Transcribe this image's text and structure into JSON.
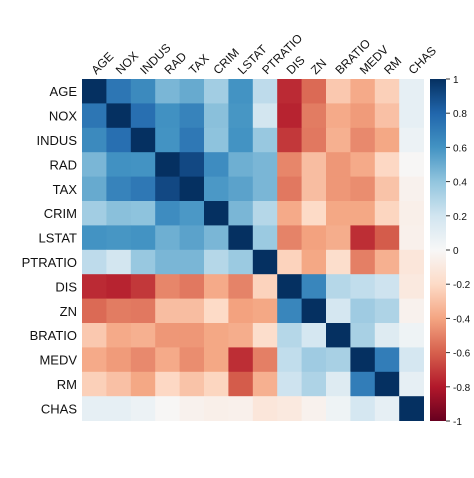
{
  "chart_data": {
    "type": "heatmap",
    "title": "",
    "labels": [
      "AGE",
      "NOX",
      "INDUS",
      "RAD",
      "TAX",
      "CRIM",
      "LSTAT",
      "PTRATIO",
      "DIS",
      "ZN",
      "BRATIO",
      "MEDV",
      "RM",
      "CHAS"
    ],
    "matrix": [
      [
        1.0,
        0.73,
        0.64,
        0.46,
        0.51,
        0.35,
        0.6,
        0.26,
        -0.75,
        -0.57,
        -0.27,
        -0.38,
        -0.24,
        0.09
      ],
      [
        0.73,
        1.0,
        0.76,
        0.61,
        0.67,
        0.42,
        0.59,
        0.19,
        -0.77,
        -0.52,
        -0.38,
        -0.43,
        -0.3,
        0.09
      ],
      [
        0.64,
        0.76,
        1.0,
        0.6,
        0.72,
        0.41,
        0.6,
        0.38,
        -0.71,
        -0.53,
        -0.36,
        -0.48,
        -0.39,
        0.06
      ],
      [
        0.46,
        0.61,
        0.6,
        1.0,
        0.91,
        0.63,
        0.49,
        0.46,
        -0.49,
        -0.31,
        -0.44,
        -0.38,
        -0.21,
        -0.01
      ],
      [
        0.51,
        0.67,
        0.72,
        0.91,
        1.0,
        0.58,
        0.54,
        0.46,
        -0.53,
        -0.31,
        -0.44,
        -0.47,
        -0.29,
        -0.04
      ],
      [
        0.35,
        0.42,
        0.41,
        0.63,
        0.58,
        1.0,
        0.46,
        0.29,
        -0.38,
        -0.2,
        -0.39,
        -0.39,
        -0.22,
        -0.06
      ],
      [
        0.6,
        0.59,
        0.6,
        0.49,
        0.54,
        0.46,
        1.0,
        0.37,
        -0.5,
        -0.41,
        -0.37,
        -0.74,
        -0.61,
        -0.05
      ],
      [
        0.26,
        0.19,
        0.38,
        0.46,
        0.46,
        0.29,
        0.37,
        1.0,
        -0.23,
        -0.39,
        -0.18,
        -0.51,
        -0.36,
        -0.12
      ],
      [
        -0.75,
        -0.77,
        -0.71,
        -0.49,
        -0.53,
        -0.38,
        -0.5,
        -0.23,
        1.0,
        0.66,
        0.29,
        0.25,
        0.21,
        -0.1
      ],
      [
        -0.57,
        -0.52,
        -0.53,
        -0.31,
        -0.31,
        -0.2,
        -0.41,
        -0.39,
        0.66,
        1.0,
        0.18,
        0.36,
        0.31,
        -0.04
      ],
      [
        -0.27,
        -0.38,
        -0.36,
        -0.44,
        -0.44,
        -0.39,
        -0.37,
        -0.18,
        0.29,
        0.18,
        1.0,
        0.33,
        0.13,
        0.05
      ],
      [
        -0.38,
        -0.43,
        -0.48,
        -0.38,
        -0.47,
        -0.39,
        -0.74,
        -0.51,
        0.25,
        0.36,
        0.33,
        1.0,
        0.7,
        0.18
      ],
      [
        -0.24,
        -0.3,
        -0.39,
        -0.21,
        -0.29,
        -0.22,
        -0.61,
        -0.36,
        0.21,
        0.31,
        0.13,
        0.7,
        1.0,
        0.09
      ],
      [
        0.09,
        0.09,
        0.06,
        -0.01,
        -0.04,
        -0.06,
        -0.05,
        -0.12,
        -0.1,
        -0.04,
        0.05,
        0.18,
        0.09,
        1.0
      ]
    ],
    "color_range": [
      -1,
      1
    ],
    "colorbar_ticks": [
      "1",
      "0.8",
      "0.6",
      "0.4",
      "0.2",
      "0",
      "-0.2",
      "-0.4",
      "-0.6",
      "-0.8",
      "-1"
    ],
    "colors": {
      "negative_max": "#67001f",
      "neutral": "#f7f7f7",
      "positive_max": "#053061"
    },
    "legend": "right-colorbar",
    "grid": false
  }
}
